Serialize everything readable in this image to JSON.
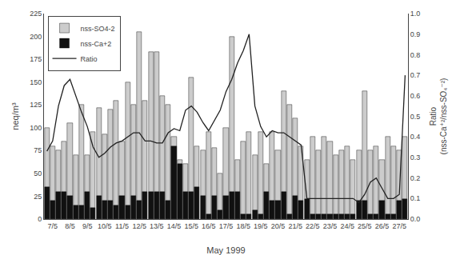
{
  "chart_data": {
    "type": "bar",
    "x_label": "May 1999",
    "y_label": "neq/m³",
    "y2_label": "Ratio\n(nss-Ca⁺²/nss-SO₄⁻²)",
    "categories": [
      null,
      "7/5",
      null,
      null,
      "8/5",
      null,
      null,
      "9/5",
      null,
      null,
      "10/5",
      null,
      null,
      "11/5",
      null,
      null,
      "12/5",
      null,
      null,
      "13/5",
      null,
      null,
      "14/5",
      null,
      null,
      "15/5",
      null,
      null,
      "16/5",
      null,
      null,
      "17/5",
      null,
      null,
      "18/5",
      null,
      null,
      "19/5",
      null,
      null,
      "20/5",
      null,
      null,
      "21/5",
      null,
      null,
      "22/5",
      null,
      null,
      "23/5",
      null,
      null,
      "24/5",
      null,
      null,
      "25/5",
      null,
      null,
      "26/5",
      null,
      null,
      "27/5",
      null
    ],
    "series": [
      {
        "name": "nss-SO4-2",
        "type": "bar",
        "color": "#cccccc",
        "values": [
          100,
          80,
          75,
          85,
          105,
          70,
          125,
          70,
          95,
          122,
          93,
          120,
          130,
          85,
          150,
          125,
          205,
          130,
          183,
          183,
          135,
          125,
          90,
          65,
          60,
          155,
          80,
          75,
          95,
          78,
          50,
          100,
          200,
          65,
          85,
          95,
          70,
          95,
          60,
          95,
          75,
          140,
          125,
          110,
          80,
          65,
          90,
          75,
          90,
          85,
          70,
          75,
          80,
          65,
          75,
          140,
          75,
          80,
          65,
          90,
          80,
          75,
          90
        ]
      },
      {
        "name": "nss-Ca+2",
        "type": "bar",
        "color": "#111111",
        "values": [
          35,
          20,
          30,
          30,
          25,
          15,
          15,
          30,
          12,
          25,
          20,
          20,
          15,
          25,
          15,
          25,
          20,
          30,
          30,
          30,
          30,
          20,
          80,
          60,
          30,
          30,
          35,
          25,
          5,
          25,
          10,
          25,
          30,
          30,
          5,
          5,
          10,
          5,
          30,
          20,
          20,
          30,
          5,
          25,
          20,
          22,
          5,
          5,
          5,
          5,
          5,
          5,
          5,
          5,
          20,
          20,
          5,
          5,
          20,
          5,
          5,
          20,
          22
        ]
      },
      {
        "name": "Ratio",
        "type": "line",
        "axis": "y2",
        "color": "#222222",
        "values": [
          0.33,
          0.38,
          0.55,
          0.65,
          0.68,
          0.6,
          0.52,
          0.45,
          0.35,
          0.3,
          0.32,
          0.35,
          0.37,
          0.38,
          0.4,
          0.42,
          0.42,
          0.38,
          0.38,
          0.37,
          0.37,
          0.42,
          0.44,
          0.43,
          0.53,
          0.55,
          0.52,
          0.47,
          0.43,
          0.48,
          0.53,
          0.62,
          0.68,
          0.76,
          0.82,
          0.9,
          0.55,
          0.45,
          0.4,
          0.43,
          0.42,
          0.42,
          0.4,
          0.38,
          0.36,
          0.1,
          0.1,
          0.1,
          0.1,
          0.1,
          0.1,
          0.1,
          0.1,
          0.1,
          0.08,
          0.12,
          0.18,
          0.2,
          0.15,
          0.1,
          0.1,
          0.12,
          0.7
        ]
      }
    ],
    "ylim": [
      0,
      225
    ],
    "yticks": [
      0,
      25,
      50,
      75,
      100,
      125,
      150,
      175,
      200,
      225
    ],
    "y2lim": [
      0.0,
      1.0
    ],
    "y2ticks": [
      {
        "value": 0.0,
        "label": "0.0"
      },
      0.1,
      0.2,
      0.3,
      0.4,
      0.5,
      0.6,
      0.7,
      0.8,
      0.9,
      {
        "value": 1.0,
        "label": "1.0"
      }
    ],
    "grid": false,
    "legend": "upper left"
  }
}
